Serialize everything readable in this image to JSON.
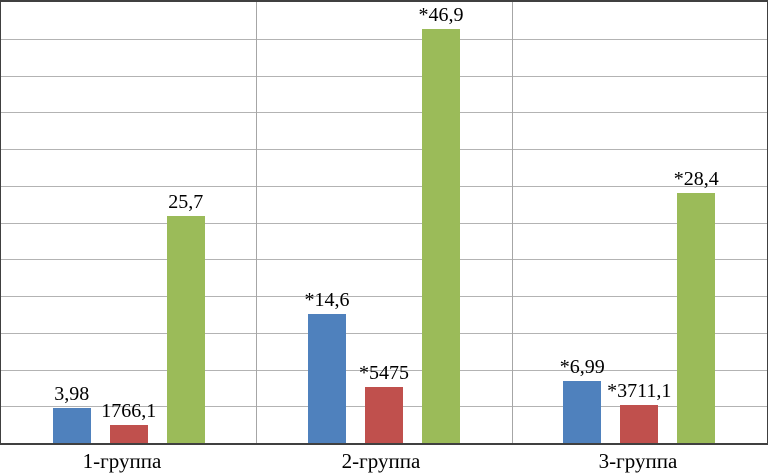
{
  "chart_data": {
    "type": "bar",
    "title": "",
    "xlabel": "",
    "ylabel": "",
    "legend": "none",
    "grid": true,
    "gridline_count": 12,
    "categories": [
      "1-группа",
      "2-группа",
      "3-группа"
    ],
    "series": [
      {
        "name": "series-1-blue",
        "color": "#4f81bd",
        "axis": "primary",
        "values": [
          3.98,
          14.6,
          6.99
        ],
        "labels": [
          "3,98",
          "*14,6",
          "*6,99"
        ]
      },
      {
        "name": "series-2-red",
        "color": "#c0504d",
        "axis": "secondary",
        "values": [
          1766.1,
          5475,
          3711.1
        ],
        "labels": [
          "1766,1",
          "*5475",
          "*3711,1"
        ]
      },
      {
        "name": "series-3-green",
        "color": "#9bbb59",
        "axis": "primary",
        "values": [
          25.7,
          46.9,
          28.4
        ],
        "labels": [
          "25,7",
          "*46,9",
          "*28,4"
        ]
      }
    ],
    "ylim": [
      0,
      50
    ],
    "secondary_ylim": [
      0,
      43000
    ],
    "colors": {
      "gridline": "#b3b3b3",
      "divider": "#a6a6a6",
      "border": "#404040",
      "background": "#ffffff"
    }
  }
}
